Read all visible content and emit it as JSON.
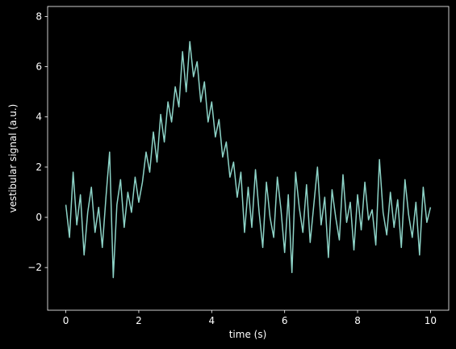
{
  "chart_data": {
    "type": "line",
    "xlabel": "time (s)",
    "ylabel": "vestibular signal (a.u.)",
    "x": [
      0,
      0.1,
      0.2,
      0.3,
      0.4,
      0.5,
      0.6,
      0.7,
      0.8,
      0.9,
      1,
      1.1,
      1.2,
      1.3,
      1.4,
      1.5,
      1.6,
      1.7,
      1.8,
      1.9,
      2,
      2.1,
      2.2,
      2.3,
      2.4,
      2.5,
      2.6,
      2.7,
      2.8,
      2.9,
      3,
      3.1,
      3.2,
      3.3,
      3.4,
      3.5,
      3.6,
      3.7,
      3.8,
      3.9,
      4,
      4.1,
      4.2,
      4.3,
      4.4,
      4.5,
      4.6,
      4.7,
      4.8,
      4.9,
      5,
      5.1,
      5.2,
      5.3,
      5.4,
      5.5,
      5.6,
      5.7,
      5.8,
      5.9,
      6,
      6.1,
      6.2,
      6.3,
      6.4,
      6.5,
      6.6,
      6.7,
      6.8,
      6.9,
      7,
      7.1,
      7.2,
      7.3,
      7.4,
      7.5,
      7.6,
      7.7,
      7.8,
      7.9,
      8,
      8.1,
      8.2,
      8.3,
      8.4,
      8.5,
      8.6,
      8.7,
      8.8,
      8.9,
      9,
      9.1,
      9.2,
      9.3,
      9.4,
      9.5,
      9.6,
      9.7,
      9.8,
      9.9,
      10
    ],
    "series": [
      {
        "color": "#8dd3c7",
        "values": [
          0.5,
          -0.8,
          1.8,
          -0.3,
          0.9,
          -1.5,
          0.2,
          1.2,
          -0.6,
          0.4,
          -1.2,
          0.8,
          2.6,
          -2.4,
          0.5,
          1.5,
          -0.4,
          1.0,
          0.2,
          1.6,
          0.6,
          1.4,
          2.6,
          1.8,
          3.4,
          2.2,
          4.1,
          3.0,
          4.6,
          3.8,
          5.2,
          4.4,
          6.6,
          5.0,
          7.0,
          5.6,
          6.2,
          4.6,
          5.4,
          3.8,
          4.6,
          3.2,
          3.9,
          2.4,
          3.0,
          1.6,
          2.2,
          0.8,
          1.8,
          -0.6,
          1.2,
          -0.4,
          1.9,
          0.2,
          -1.2,
          1.4,
          0.0,
          -0.8,
          1.6,
          0.3,
          -1.4,
          0.9,
          -2.2,
          1.8,
          0.4,
          -0.6,
          1.3,
          -1.0,
          0.5,
          2.0,
          -0.3,
          0.8,
          -1.6,
          1.1,
          0.0,
          -0.9,
          1.7,
          -0.2,
          0.6,
          -1.3,
          0.9,
          -0.5,
          1.4,
          -0.1,
          0.3,
          -1.1,
          2.3,
          0.2,
          -0.7,
          1.0,
          -0.4,
          0.7,
          -1.2,
          1.5,
          0.1,
          -0.8,
          0.6,
          -1.5,
          1.2,
          -0.2,
          0.4
        ]
      }
    ],
    "xlim": [
      -0.5,
      10.5
    ],
    "ylim": [
      -3.7,
      8.4
    ],
    "xticks": [
      0,
      2,
      4,
      6,
      8,
      10
    ],
    "yticks": [
      {
        "value": -2,
        "label": "−2"
      },
      0,
      2,
      4,
      6,
      8
    ],
    "grid": false
  }
}
